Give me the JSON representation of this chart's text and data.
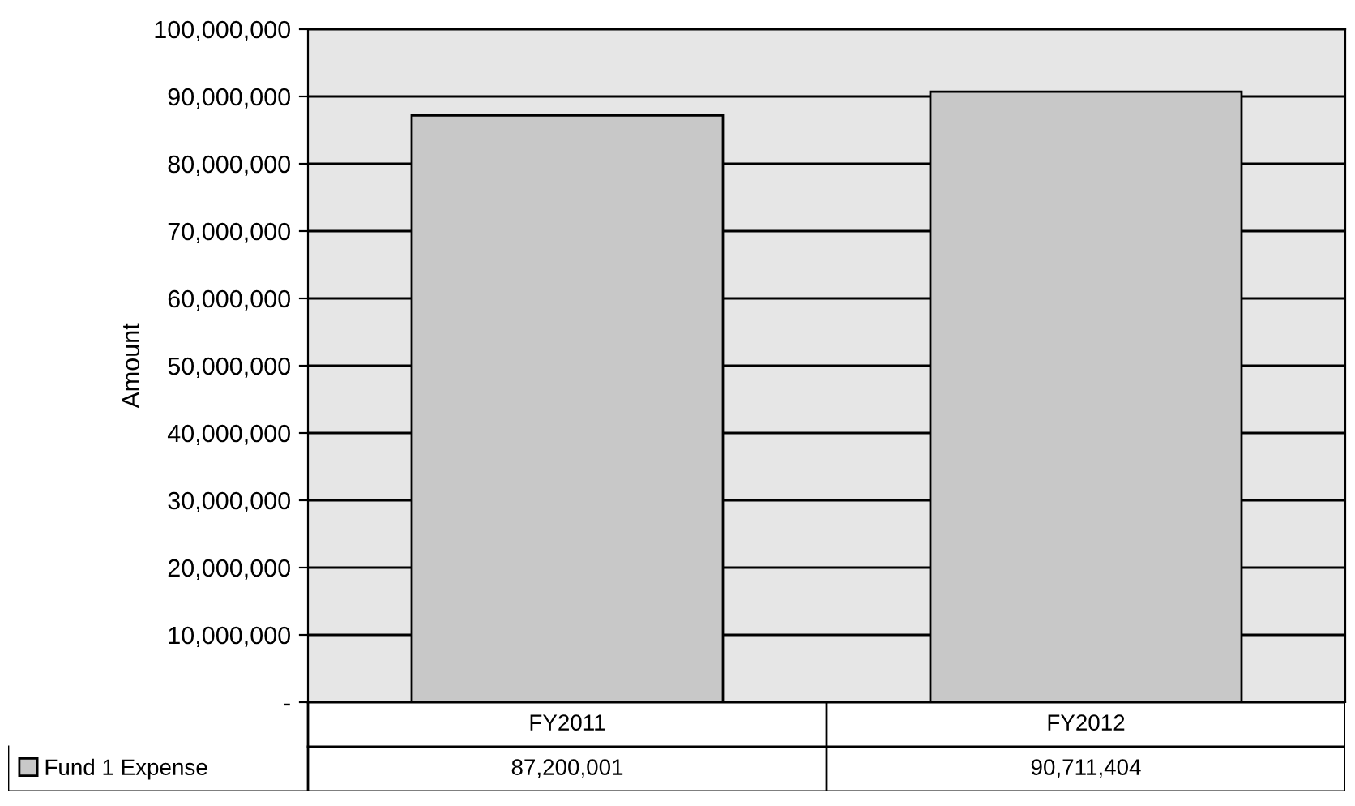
{
  "chart_data": {
    "type": "bar",
    "ylabel": "Amount",
    "categories": [
      "FY2011",
      "FY2012"
    ],
    "series": [
      {
        "name": "Fund 1 Expense",
        "color": "#c8c8c8",
        "values": [
          87200001,
          90711404
        ],
        "value_labels": [
          "87,200,001",
          "90,711,404"
        ]
      }
    ],
    "ylim": [
      0,
      100000000
    ],
    "yticks": [
      {
        "value": 0,
        "label": "-"
      },
      {
        "value": 10000000,
        "label": "10,000,000"
      },
      {
        "value": 20000000,
        "label": "20,000,000"
      },
      {
        "value": 30000000,
        "label": "30,000,000"
      },
      {
        "value": 40000000,
        "label": "40,000,000"
      },
      {
        "value": 50000000,
        "label": "50,000,000"
      },
      {
        "value": 60000000,
        "label": "60,000,000"
      },
      {
        "value": 70000000,
        "label": "70,000,000"
      },
      {
        "value": 80000000,
        "label": "80,000,000"
      },
      {
        "value": 90000000,
        "label": "90,000,000"
      },
      {
        "value": 100000000,
        "label": "100,000,000"
      }
    ],
    "grid": "y",
    "legend": "bottom left"
  }
}
